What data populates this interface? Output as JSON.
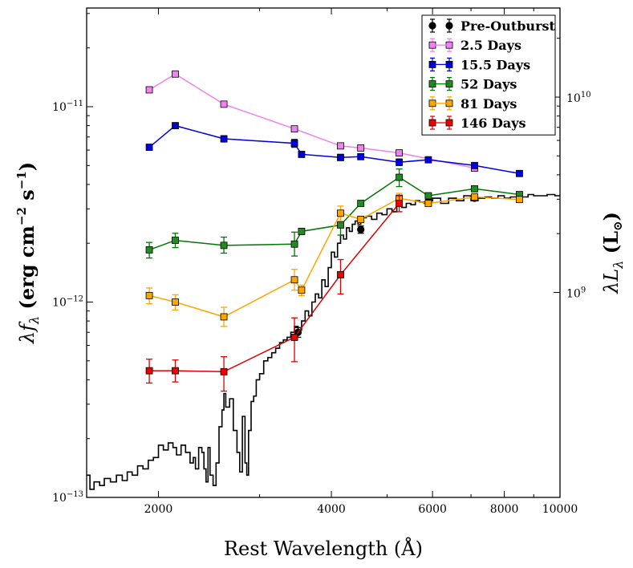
{
  "chart_data": {
    "type": "scatter",
    "x_scale": "log",
    "y_scale": "log",
    "xlim": [
      1500,
      10000
    ],
    "ylim": [
      1e-13,
      3.2e-11
    ],
    "xlabel": "Rest Wavelength (Å)",
    "ylabel": "λf_λ (erg cm^-2 s^-1)",
    "ylabel_parts": {
      "lambda": "λ",
      "f": "f",
      "sub": "λ",
      "units": " (erg cm",
      "exp1": "−2",
      "s": " s",
      "exp2": "−1",
      "close": ")"
    },
    "y2label_parts": {
      "lambda": "λ",
      "L": "L",
      "sub": "λ",
      "open": " (L",
      "sun": "⊙",
      "close": ")"
    },
    "x_ticks": [
      {
        "value": 2000,
        "label": "2000"
      },
      {
        "value": 4000,
        "label": "4000"
      },
      {
        "value": 6000,
        "label": "6000"
      },
      {
        "value": 8000,
        "label": "8000"
      },
      {
        "value": 10000,
        "label": "10000"
      }
    ],
    "y_ticks": [
      {
        "value": 1e-13,
        "mantissa": "10",
        "exp": "−13"
      },
      {
        "value": 1e-12,
        "mantissa": "10",
        "exp": "−12"
      },
      {
        "value": 1e-11,
        "mantissa": "10",
        "exp": "−11"
      }
    ],
    "y2_ticks": [
      {
        "value": 1.12e-12,
        "mantissa": "10",
        "exp": "9"
      },
      {
        "value": 1.12e-11,
        "mantissa": "10",
        "exp": "10"
      }
    ],
    "spectrum": {
      "name": "spectrum",
      "color": "#000000",
      "x": [
        1500,
        1520,
        1545,
        1580,
        1610,
        1650,
        1690,
        1730,
        1765,
        1800,
        1840,
        1880,
        1920,
        1960,
        2000,
        2040,
        2080,
        2120,
        2150,
        2190,
        2230,
        2270,
        2300,
        2320,
        2350,
        2380,
        2400,
        2420,
        2440,
        2460,
        2490,
        2520,
        2550,
        2580,
        2600,
        2620,
        2660,
        2700,
        2740,
        2770,
        2800,
        2830,
        2850,
        2870,
        2900,
        2930,
        2960,
        3000,
        3050,
        3100,
        3150,
        3200,
        3250,
        3300,
        3350,
        3400,
        3450,
        3500,
        3550,
        3600,
        3650,
        3700,
        3750,
        3800,
        3850,
        3900,
        3950,
        4000,
        4050,
        4100,
        4150,
        4200,
        4250,
        4300,
        4350,
        4400,
        4450,
        4500,
        4600,
        4700,
        4800,
        4900,
        5000,
        5100,
        5200,
        5300,
        5400,
        5500,
        5600,
        5700,
        5800,
        5900,
        6000,
        6200,
        6400,
        6600,
        6800,
        7000,
        7200,
        7400,
        7600,
        7800,
        8000,
        8200,
        8400,
        8600,
        8800,
        9000,
        9200,
        9500,
        9800,
        10000
      ],
      "y": [
        1.3e-13,
        1.1e-13,
        1.2e-13,
        1.15e-13,
        1.25e-13,
        1.2e-13,
        1.3e-13,
        1.22e-13,
        1.35e-13,
        1.3e-13,
        1.45e-13,
        1.4e-13,
        1.55e-13,
        1.6e-13,
        1.85e-13,
        1.75e-13,
        1.9e-13,
        1.8e-13,
        1.65e-13,
        1.85e-13,
        1.7e-13,
        1.5e-13,
        1.6e-13,
        1.4e-13,
        1.8e-13,
        1.7e-13,
        1.4e-13,
        1.2e-13,
        1.8e-13,
        1.3e-13,
        1.15e-13,
        1.5e-13,
        2.3e-13,
        2.8e-13,
        3.4e-13,
        2.9e-13,
        3.2e-13,
        2.2e-13,
        1.7e-13,
        1.35e-13,
        2.6e-13,
        1.5e-13,
        1.3e-13,
        2.2e-13,
        3.1e-13,
        3.3e-13,
        4e-13,
        4.3e-13,
        5e-13,
        5.2e-13,
        5.5e-13,
        5.8e-13,
        6.2e-13,
        6.4e-13,
        6.6e-13,
        7e-13,
        7.5e-13,
        7.2e-13,
        8e-13,
        9e-13,
        8.5e-13,
        1e-12,
        1.1e-12,
        1.05e-12,
        1.3e-12,
        1.2e-12,
        1.5e-12,
        1.8e-12,
        1.7e-12,
        2e-12,
        2.2e-12,
        2.1e-12,
        2.4e-12,
        2.3e-12,
        2.5e-12,
        2.6e-12,
        2.5e-12,
        2.7e-12,
        2.75e-12,
        2.65e-12,
        2.85e-12,
        2.8e-12,
        3e-12,
        2.9e-12,
        3.1e-12,
        3.05e-12,
        3.2e-12,
        3.15e-12,
        3.3e-12,
        3.25e-12,
        3.2e-12,
        3.3e-12,
        3.4e-12,
        3.2e-12,
        3.4e-12,
        3.3e-12,
        3.5e-12,
        3.3e-12,
        3.4e-12,
        3.45e-12,
        3.4e-12,
        3.5e-12,
        3.4e-12,
        3.45e-12,
        3.5e-12,
        3.45e-12,
        3.55e-12,
        3.5e-12,
        3.5e-12,
        3.55e-12,
        3.5e-12,
        3.55e-12
      ]
    },
    "series": [
      {
        "name": "Pre-Outburst",
        "color": "#000000",
        "fill": "#000000",
        "marker": "circle",
        "connected": false,
        "points": [
          {
            "x": 3500,
            "y": 7e-13,
            "lo": 6.6e-13,
            "hi": 7.4e-13
          },
          {
            "x": 4500,
            "y": 2.35e-12,
            "lo": 2.25e-12,
            "hi": 2.45e-12
          },
          {
            "x": 5900,
            "y": 3.25e-12,
            "lo": 3.15e-12,
            "hi": 3.35e-12
          },
          {
            "x": 7100,
            "y": 3.4e-12,
            "lo": 3.3e-12,
            "hi": 3.5e-12
          }
        ]
      },
      {
        "name": "2.5 Days",
        "color": "#ee82ee",
        "fill": "#ee82ee",
        "marker": "square",
        "connected": true,
        "points": [
          {
            "x": 1928,
            "y": 1.22e-11,
            "lo": 1.2e-11,
            "hi": 1.24e-11
          },
          {
            "x": 2140,
            "y": 1.47e-11,
            "lo": 1.44e-11,
            "hi": 1.5e-11
          },
          {
            "x": 2600,
            "y": 1.03e-11,
            "lo": 1.01e-11,
            "hi": 1.05e-11
          },
          {
            "x": 3450,
            "y": 7.7e-12,
            "lo": 7.5e-12,
            "hi": 7.9e-12
          },
          {
            "x": 4150,
            "y": 6.3e-12,
            "lo": 6.1e-12,
            "hi": 6.5e-12
          },
          {
            "x": 4500,
            "y": 6.15e-12,
            "lo": 6e-12,
            "hi": 6.3e-12
          },
          {
            "x": 5250,
            "y": 5.8e-12,
            "lo": 5.6e-12,
            "hi": 6e-12
          },
          {
            "x": 7100,
            "y": 4.85e-12,
            "lo": 4.7e-12,
            "hi": 5e-12
          }
        ]
      },
      {
        "name": "15.5 Days",
        "color": "#0000dd",
        "fill": "#0000dd",
        "marker": "square",
        "connected": true,
        "points": [
          {
            "x": 1928,
            "y": 6.2e-12,
            "lo": 6e-12,
            "hi": 6.4e-12
          },
          {
            "x": 2140,
            "y": 8e-12,
            "lo": 7.8e-12,
            "hi": 8.2e-12
          },
          {
            "x": 2600,
            "y": 6.85e-12,
            "lo": 6.6e-12,
            "hi": 7.1e-12
          },
          {
            "x": 3450,
            "y": 6.5e-12,
            "lo": 6.2e-12,
            "hi": 6.8e-12
          },
          {
            "x": 3550,
            "y": 5.7e-12,
            "lo": 5.55e-12,
            "hi": 5.85e-12
          },
          {
            "x": 4150,
            "y": 5.5e-12,
            "lo": 5.3e-12,
            "hi": 5.7e-12
          },
          {
            "x": 4500,
            "y": 5.55e-12,
            "lo": 5.4e-12,
            "hi": 5.7e-12
          },
          {
            "x": 5250,
            "y": 5.2e-12,
            "lo": 5e-12,
            "hi": 5.4e-12
          },
          {
            "x": 5900,
            "y": 5.35e-12,
            "lo": 5.2e-12,
            "hi": 5.5e-12
          },
          {
            "x": 7100,
            "y": 5e-12,
            "lo": 4.85e-12,
            "hi": 5.15e-12
          },
          {
            "x": 8500,
            "y": 4.55e-12,
            "lo": 4.45e-12,
            "hi": 4.65e-12
          }
        ]
      },
      {
        "name": "52 Days",
        "color": "#007700",
        "fill": "#228b22",
        "marker": "square",
        "connected": true,
        "points": [
          {
            "x": 1928,
            "y": 1.85e-12,
            "lo": 1.68e-12,
            "hi": 2.02e-12
          },
          {
            "x": 2140,
            "y": 2.07e-12,
            "lo": 1.9e-12,
            "hi": 2.25e-12
          },
          {
            "x": 2600,
            "y": 1.95e-12,
            "lo": 1.78e-12,
            "hi": 2.15e-12
          },
          {
            "x": 3450,
            "y": 1.98e-12,
            "lo": 1.72e-12,
            "hi": 2.28e-12
          },
          {
            "x": 3550,
            "y": 2.3e-12,
            "lo": 2.22e-12,
            "hi": 2.38e-12
          },
          {
            "x": 4150,
            "y": 2.48e-12,
            "lo": 2.2e-12,
            "hi": 2.78e-12
          },
          {
            "x": 4500,
            "y": 3.2e-12,
            "lo": 3.1e-12,
            "hi": 3.3e-12
          },
          {
            "x": 5250,
            "y": 4.35e-12,
            "lo": 3.9e-12,
            "hi": 4.8e-12
          },
          {
            "x": 5900,
            "y": 3.5e-12,
            "lo": 3.4e-12,
            "hi": 3.6e-12
          },
          {
            "x": 7100,
            "y": 3.8e-12,
            "lo": 3.7e-12,
            "hi": 3.9e-12
          },
          {
            "x": 8500,
            "y": 3.55e-12,
            "lo": 3.45e-12,
            "hi": 3.65e-12
          }
        ]
      },
      {
        "name": "81 Days",
        "color": "#ffa500",
        "fill": "#ffa500",
        "marker": "square",
        "connected": true,
        "points": [
          {
            "x": 1928,
            "y": 1.08e-12,
            "lo": 9.8e-13,
            "hi": 1.18e-12
          },
          {
            "x": 2140,
            "y": 1e-12,
            "lo": 9.1e-13,
            "hi": 1.09e-12
          },
          {
            "x": 2600,
            "y": 8.4e-13,
            "lo": 7.5e-13,
            "hi": 9.4e-13
          },
          {
            "x": 3450,
            "y": 1.3e-12,
            "lo": 1.15e-12,
            "hi": 1.47e-12
          },
          {
            "x": 3550,
            "y": 1.15e-12,
            "lo": 1.08e-12,
            "hi": 1.22e-12
          },
          {
            "x": 4150,
            "y": 2.85e-12,
            "lo": 2.6e-12,
            "hi": 3.1e-12
          },
          {
            "x": 4500,
            "y": 2.65e-12,
            "lo": 2.55e-12,
            "hi": 2.75e-12
          },
          {
            "x": 5250,
            "y": 3.4e-12,
            "lo": 3.2e-12,
            "hi": 3.6e-12
          },
          {
            "x": 5900,
            "y": 3.2e-12,
            "lo": 3.1e-12,
            "hi": 3.3e-12
          },
          {
            "x": 7100,
            "y": 3.45e-12,
            "lo": 3.35e-12,
            "hi": 3.55e-12
          },
          {
            "x": 8500,
            "y": 3.35e-12,
            "lo": 3.25e-12,
            "hi": 3.45e-12
          }
        ]
      },
      {
        "name": "146 Days",
        "color": "#dd0000",
        "fill": "#ee0000",
        "marker": "square",
        "connected": true,
        "points": [
          {
            "x": 1928,
            "y": 4.45e-13,
            "lo": 3.85e-13,
            "hi": 5.1e-13
          },
          {
            "x": 2140,
            "y": 4.45e-13,
            "lo": 3.9e-13,
            "hi": 5.05e-13
          },
          {
            "x": 2600,
            "y": 4.4e-13,
            "lo": 3.5e-13,
            "hi": 5.25e-13
          },
          {
            "x": 3450,
            "y": 6.6e-13,
            "lo": 4.95e-13,
            "hi": 8.3e-13
          },
          {
            "x": 4150,
            "y": 1.38e-12,
            "lo": 1.1e-12,
            "hi": 1.65e-12
          },
          {
            "x": 5250,
            "y": 3.2e-12,
            "lo": 2.9e-12,
            "hi": 3.5e-12
          }
        ]
      }
    ],
    "legend": {
      "position": "top-right",
      "entries": [
        "Pre-Outburst",
        "2.5 Days",
        "15.5 Days",
        "52 Days",
        "81 Days",
        "146 Days"
      ]
    }
  }
}
